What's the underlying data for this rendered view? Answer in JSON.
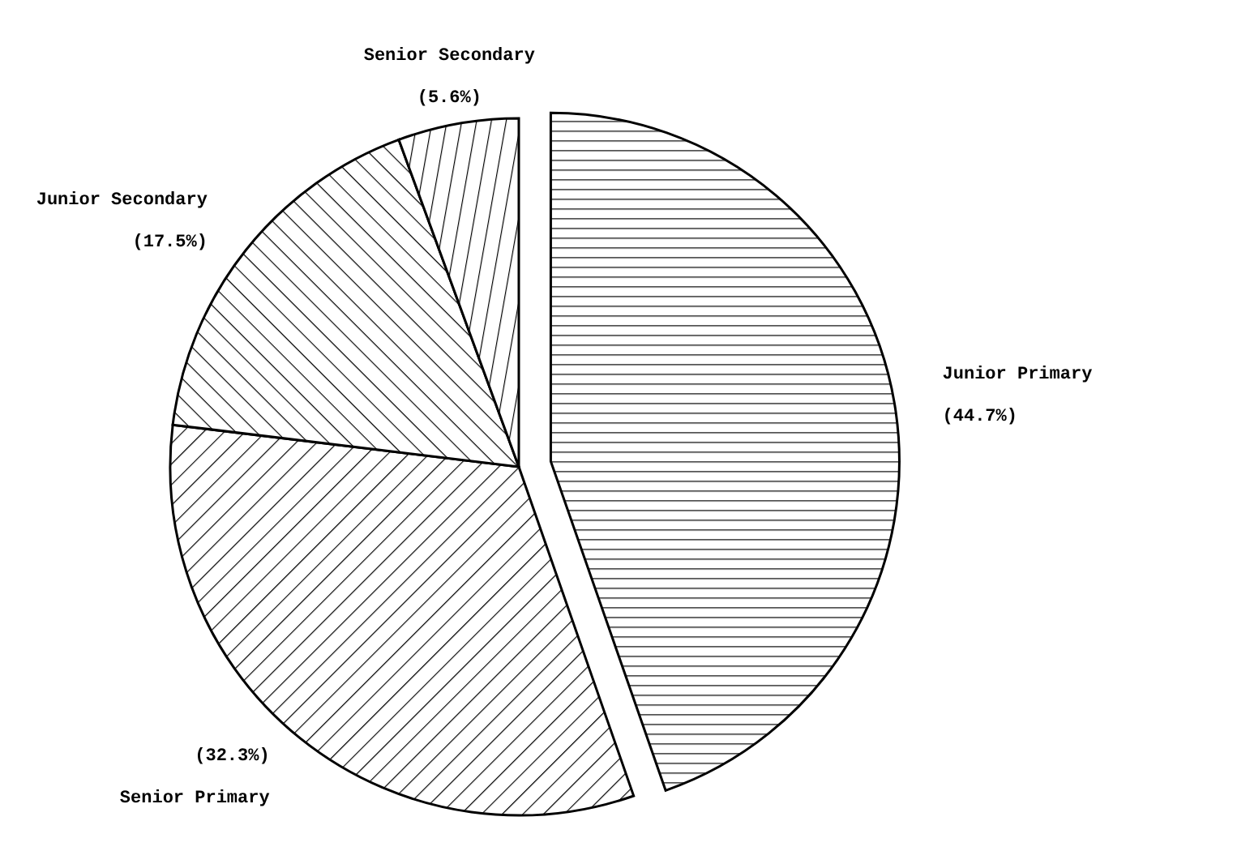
{
  "chart_data": {
    "type": "pie",
    "categories": [
      "Junior Primary",
      "Senior Primary",
      "Junior Secondary",
      "Senior Secondary"
    ],
    "values": [
      44.7,
      32.3,
      17.5,
      5.6
    ],
    "value_labels": [
      "(44.7%)",
      "(32.3%)",
      "(17.5%)",
      "(5.6%)"
    ],
    "colors": [
      "#000000",
      "#000000",
      "#000000",
      "#000000"
    ],
    "legend": false
  }
}
